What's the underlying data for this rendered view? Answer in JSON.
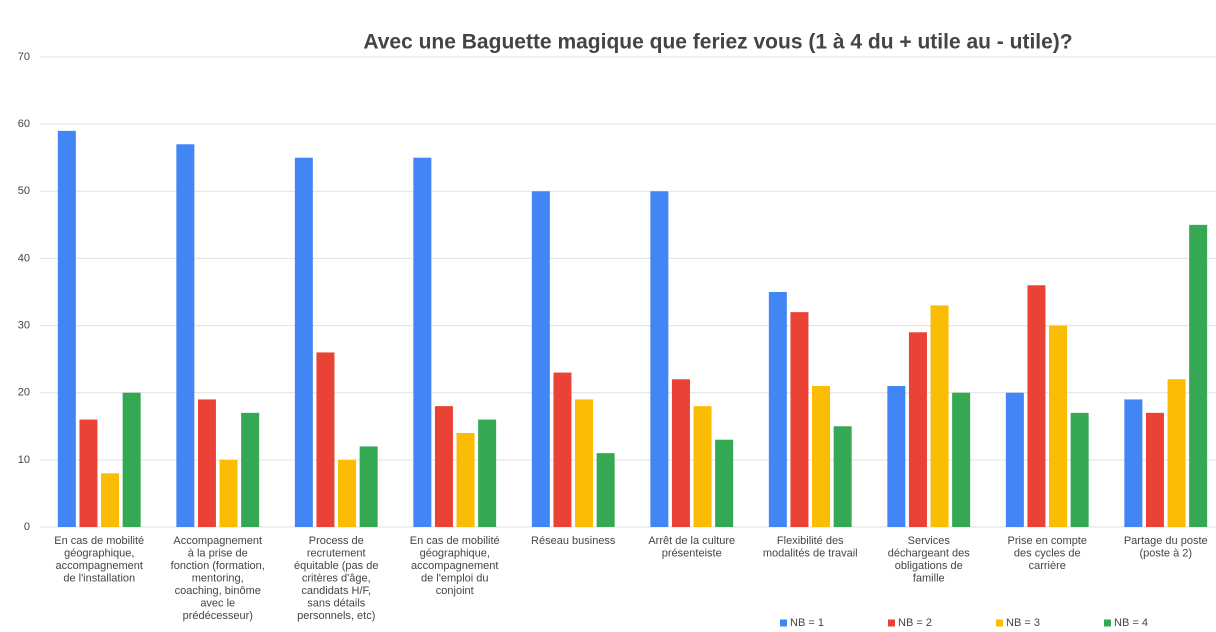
{
  "chart_data": {
    "type": "bar",
    "title": "Avec une Baguette magique que feriez vous (1 à 4 du + utile au - utile)?",
    "categories": [
      "En cas de mobilité\ngéographique,\naccompagnement\nde l'installation",
      "Accompagnement\nà la prise de\nfonction (formation,\nmentoring,\ncoaching, binôme\navec le\nprédécesseur)",
      "Process de\nrecrutement\néquitable (pas de\ncritères d'âge,\ncandidats H/F,\nsans détails\npersonnels, etc)",
      "En cas de mobilité\ngéographique,\naccompagnement\nde l'emploi du\nconjoint",
      "Réseau business",
      "Arrêt de la culture\nprésenteiste",
      "Flexibilité des\nmodalités de travail",
      "Services\ndéchargeant des\nobligations de\nfamille",
      "Prise en compte\ndes cycles de\ncarrière",
      "Partage du poste\n(poste à 2)"
    ],
    "series": [
      {
        "name": "NB = 1",
        "color": "#4285f4",
        "values": [
          59,
          57,
          55,
          55,
          50,
          50,
          35,
          21,
          20,
          19
        ]
      },
      {
        "name": "NB = 2",
        "color": "#ea4335",
        "values": [
          16,
          19,
          26,
          18,
          23,
          22,
          32,
          29,
          36,
          17
        ]
      },
      {
        "name": "NB = 3",
        "color": "#fbbc04",
        "values": [
          8,
          10,
          10,
          14,
          19,
          18,
          21,
          33,
          30,
          22
        ]
      },
      {
        "name": "NB = 4",
        "color": "#34a853",
        "values": [
          20,
          17,
          12,
          16,
          11,
          13,
          15,
          20,
          17,
          45
        ]
      }
    ],
    "ylim": [
      0,
      70
    ],
    "yticks": [
      0,
      10,
      20,
      30,
      40,
      50,
      60,
      70
    ],
    "grid": true,
    "legend": "bottom"
  }
}
